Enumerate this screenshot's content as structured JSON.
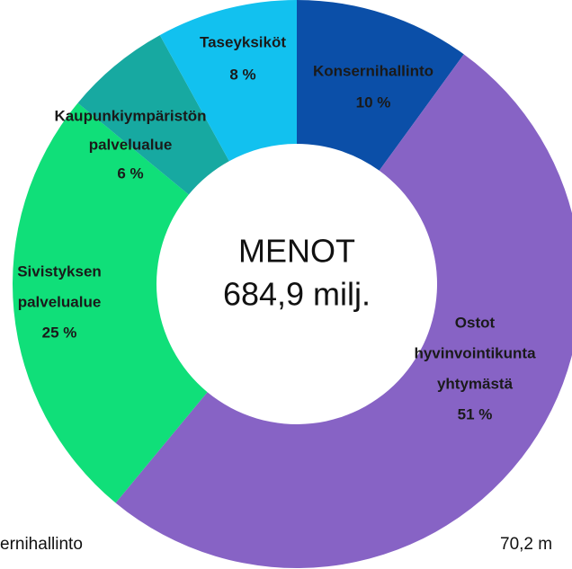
{
  "chart_data": {
    "type": "donut",
    "center_text": [
      "MENOT",
      "684,9 milj."
    ],
    "categories": [
      [
        "Konsernihallinto"
      ],
      [
        "Ostot",
        "hyvinvointikunta",
        "yhtymästä"
      ],
      [
        "Sivistyksen",
        "palvelualue"
      ],
      [
        "Kaupunkiympäristön",
        "palvelualue"
      ],
      [
        "Taseyksiköt"
      ]
    ],
    "values": [
      10,
      51,
      25,
      6,
      8
    ],
    "value_labels": [
      "10 %",
      "51 %",
      "25 %",
      "6 %",
      "8 %"
    ],
    "colors": [
      "#0b4fa8",
      "#8763c5",
      "#10df79",
      "#17a9a1",
      "#12c1ef"
    ],
    "footer_texts": [
      "ernihallinto",
      "70,2 m"
    ]
  }
}
